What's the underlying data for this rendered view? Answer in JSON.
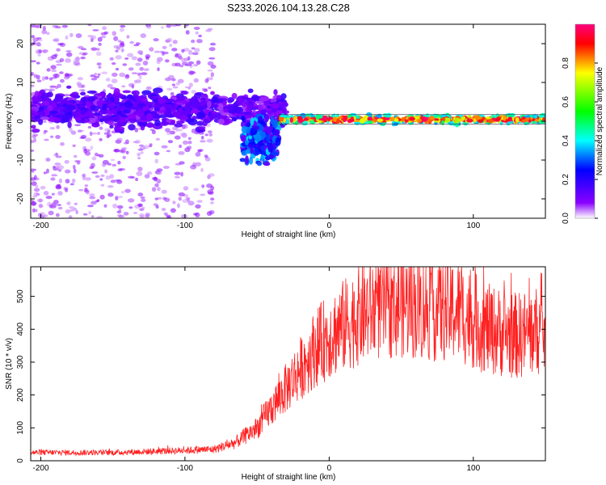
{
  "title": "S233.2026.104.13.28.C28",
  "chart_data": [
    {
      "type": "heatmap",
      "name": "spectrogram",
      "xlabel": "Height of straight line (km)",
      "ylabel": "Frequency (Hz)",
      "xlim": [
        -207,
        150
      ],
      "ylim": [
        -25,
        25
      ],
      "xticks": [
        -200,
        -100,
        0,
        100
      ],
      "yticks": [
        -20,
        -10,
        0,
        10,
        20
      ],
      "colorbar": {
        "label": "Normalized spectral amplitude",
        "range": [
          0,
          1
        ],
        "ticks": [
          0.0,
          0.2,
          0.4,
          0.6,
          0.8
        ],
        "colors": [
          "#ffffff",
          "#8a00ff",
          "#0000ff",
          "#00ffff",
          "#00ff00",
          "#ffff00",
          "#ff0000",
          "#ff0080"
        ]
      },
      "features": [
        {
          "segment": "scatter",
          "x_range": [
            -207,
            -80
          ],
          "y_range": [
            -25,
            25
          ],
          "amplitude": 0.05
        },
        {
          "segment": "band",
          "x_range": [
            -207,
            -30
          ],
          "center_hz": 3,
          "halfwidth_hz": 6,
          "amplitude": 0.15
        },
        {
          "segment": "dip",
          "x_range": [
            -60,
            -35
          ],
          "center_hz": -5,
          "halfwidth_hz": 8,
          "amplitude": 0.3
        },
        {
          "segment": "line",
          "x_range": [
            -35,
            150
          ],
          "center_hz": 0.5,
          "halfwidth_hz": 1.5,
          "amplitude": 0.9
        }
      ]
    },
    {
      "type": "line",
      "name": "snr",
      "xlabel": "Height of straight line (km)",
      "ylabel": "SNR (10 * v/v)",
      "xlim": [
        -207,
        150
      ],
      "ylim": [
        0,
        590
      ],
      "xticks": [
        -200,
        -100,
        0,
        100
      ],
      "yticks": [
        0,
        100,
        200,
        300,
        400,
        500
      ],
      "color": "#ff2020",
      "trend_points": [
        {
          "x": -207,
          "y": 25
        },
        {
          "x": -150,
          "y": 25
        },
        {
          "x": -110,
          "y": 30
        },
        {
          "x": -80,
          "y": 35
        },
        {
          "x": -65,
          "y": 55
        },
        {
          "x": -50,
          "y": 100
        },
        {
          "x": -40,
          "y": 160
        },
        {
          "x": -30,
          "y": 220
        },
        {
          "x": -20,
          "y": 280
        },
        {
          "x": -10,
          "y": 340
        },
        {
          "x": 0,
          "y": 380
        },
        {
          "x": 10,
          "y": 410
        },
        {
          "x": 20,
          "y": 440
        },
        {
          "x": 30,
          "y": 460
        },
        {
          "x": 50,
          "y": 480
        },
        {
          "x": 70,
          "y": 460
        },
        {
          "x": 90,
          "y": 455
        },
        {
          "x": 110,
          "y": 400
        },
        {
          "x": 130,
          "y": 380
        },
        {
          "x": 150,
          "y": 400
        }
      ],
      "noise_amplitude": 0.35
    }
  ]
}
